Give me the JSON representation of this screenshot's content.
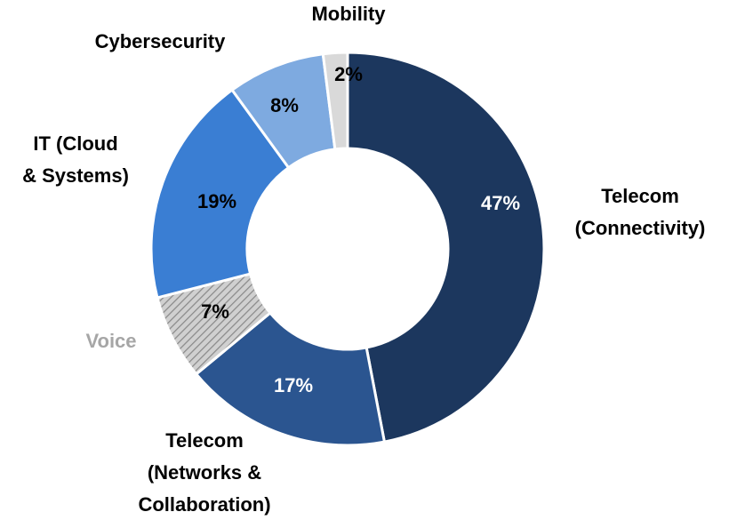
{
  "chart_data": {
    "type": "donut",
    "categories": [
      "Telecom\n(Connectivity)",
      "Telecom\n(Networks &\nCollaboration)",
      "Voice",
      "IT (Cloud\n& Systems)",
      "Cybersecurity",
      "Mobility"
    ],
    "values": [
      47,
      17,
      7,
      19,
      8,
      2
    ],
    "value_labels": [
      "47%",
      "17%",
      "7%",
      "19%",
      "8%",
      "2%"
    ],
    "colors": [
      "#1c375e",
      "#2b5590",
      "hatch-gray",
      "#3a7ed3",
      "#7eaae0",
      "#d9d9d9"
    ]
  }
}
